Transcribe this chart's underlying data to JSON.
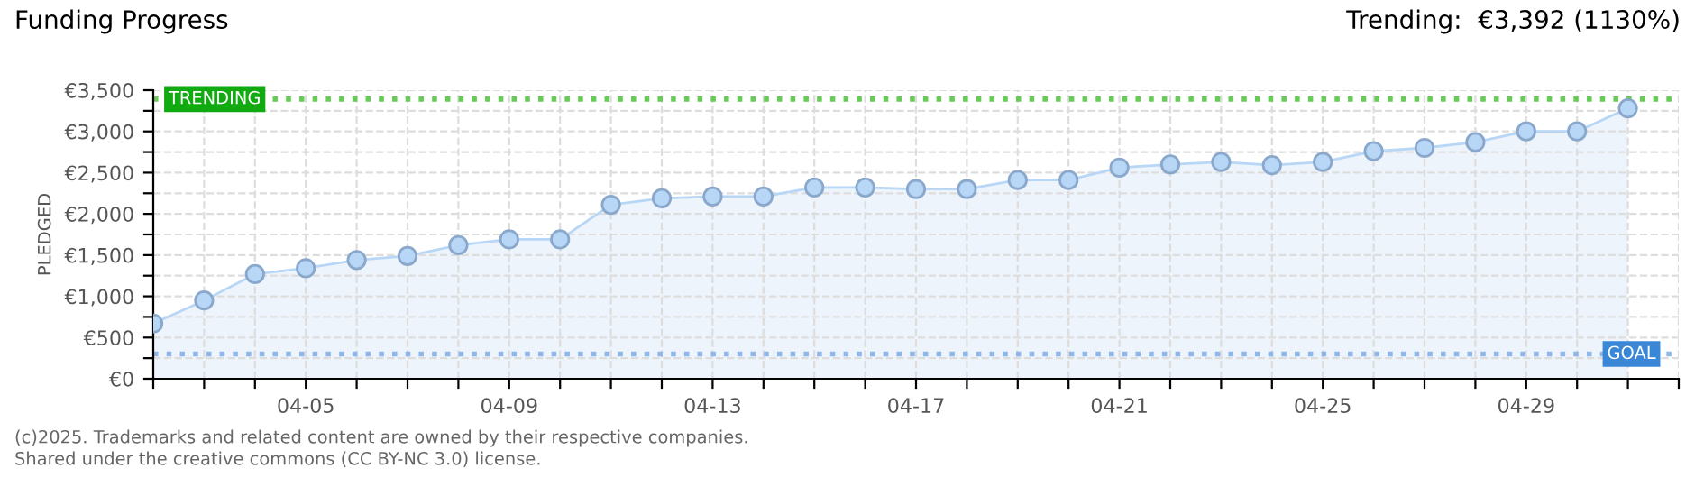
{
  "chart_data": {
    "type": "area",
    "title": "Funding Progress",
    "subtitle": "Trending:  €3,392 (1130%)",
    "ylabel": "PLEDGED",
    "x": [
      "2025-04-02",
      "2025-04-03",
      "2025-04-04",
      "2025-04-05",
      "2025-04-06",
      "2025-04-07",
      "2025-04-08",
      "2025-04-09",
      "2025-04-10",
      "2025-04-11",
      "2025-04-12",
      "2025-04-13",
      "2025-04-14",
      "2025-04-15",
      "2025-04-16",
      "2025-04-17",
      "2025-04-18",
      "2025-04-19",
      "2025-04-20",
      "2025-04-21",
      "2025-04-22",
      "2025-04-23",
      "2025-04-24",
      "2025-04-25",
      "2025-04-26",
      "2025-04-27",
      "2025-04-28",
      "2025-04-29",
      "2025-04-30",
      "2025-05-01"
    ],
    "series": [
      {
        "color": "#b8d6f5",
        "values": [
          670,
          950,
          1270,
          1340,
          1440,
          1490,
          1620,
          1690,
          1690,
          2110,
          2190,
          2210,
          2210,
          2320,
          2320,
          2300,
          2300,
          2410,
          2410,
          2560,
          2600,
          2630,
          2590,
          2630,
          2760,
          2800,
          2870,
          3000,
          3000,
          3280
        ]
      }
    ],
    "marker": "circle",
    "grid": true,
    "xlim": [
      "2025-04-02",
      "2025-05-02"
    ],
    "xticks": [
      {
        "value": "2025-04-02",
        "label": null
      },
      {
        "value": "2025-04-03",
        "label": null
      },
      {
        "value": "2025-04-04",
        "label": null
      },
      {
        "value": "2025-04-05",
        "label": "04-05"
      },
      {
        "value": "2025-04-06",
        "label": null
      },
      {
        "value": "2025-04-07",
        "label": null
      },
      {
        "value": "2025-04-08",
        "label": null
      },
      {
        "value": "2025-04-09",
        "label": "04-09"
      },
      {
        "value": "2025-04-10",
        "label": null
      },
      {
        "value": "2025-04-11",
        "label": null
      },
      {
        "value": "2025-04-12",
        "label": null
      },
      {
        "value": "2025-04-13",
        "label": "04-13"
      },
      {
        "value": "2025-04-14",
        "label": null
      },
      {
        "value": "2025-04-15",
        "label": null
      },
      {
        "value": "2025-04-16",
        "label": null
      },
      {
        "value": "2025-04-17",
        "label": "04-17"
      },
      {
        "value": "2025-04-18",
        "label": null
      },
      {
        "value": "2025-04-19",
        "label": null
      },
      {
        "value": "2025-04-20",
        "label": null
      },
      {
        "value": "2025-04-21",
        "label": "04-21"
      },
      {
        "value": "2025-04-22",
        "label": null
      },
      {
        "value": "2025-04-23",
        "label": null
      },
      {
        "value": "2025-04-24",
        "label": null
      },
      {
        "value": "2025-04-25",
        "label": "04-25"
      },
      {
        "value": "2025-04-26",
        "label": null
      },
      {
        "value": "2025-04-27",
        "label": null
      },
      {
        "value": "2025-04-28",
        "label": null
      },
      {
        "value": "2025-04-29",
        "label": "04-29"
      },
      {
        "value": "2025-04-30",
        "label": null
      },
      {
        "value": "2025-05-01",
        "label": null
      },
      {
        "value": "2025-05-02",
        "label": null
      }
    ],
    "ylim": [
      0,
      3500
    ],
    "yticks": [
      {
        "value": 0,
        "label": "€0"
      },
      {
        "value": 250,
        "label": null
      },
      {
        "value": 500,
        "label": "€500"
      },
      {
        "value": 750,
        "label": null
      },
      {
        "value": 1000,
        "label": "€1,000"
      },
      {
        "value": 1250,
        "label": null
      },
      {
        "value": 1500,
        "label": "€1,500"
      },
      {
        "value": 1750,
        "label": null
      },
      {
        "value": 2000,
        "label": "€2,000"
      },
      {
        "value": 2250,
        "label": null
      },
      {
        "value": 2500,
        "label": "€2,500"
      },
      {
        "value": 2750,
        "label": null
      },
      {
        "value": 3000,
        "label": "€3,000"
      },
      {
        "value": 3250,
        "label": null
      },
      {
        "value": 3500,
        "label": "€3,500"
      }
    ],
    "ref_lines": [
      {
        "axis": "y",
        "value": 3392,
        "label": "TRENDING",
        "color": "#66cc55",
        "line_style": "dotted"
      },
      {
        "axis": "y",
        "value": 300,
        "label": "GOAL",
        "color": "#8fb8e8",
        "line_style": "dotted"
      }
    ],
    "annotations": [
      "(c)2025. Trademarks and related content are owned by their respective companies.",
      "Shared under the creative commons (CC BY-NC 3.0) license."
    ]
  }
}
